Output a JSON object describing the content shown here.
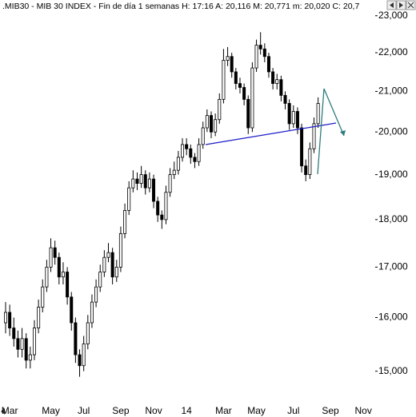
{
  "chart_data": {
    "type": "candlestick",
    "title": ".MIB30 - MIB 30 INDEX - Fin de día 1 semanas  H: 17:16  A: 20,116  M: 20,771  m: 20,020  C: 20,7",
    "log_scale": true,
    "up_color": "#ffffff",
    "down_color": "#000000",
    "ylim": [
      14430,
      23440
    ],
    "yticks": [
      {
        "value": 15000,
        "label": "15,000"
      },
      {
        "value": 16000,
        "label": "16,000"
      },
      {
        "value": 17000,
        "label": "17,000"
      },
      {
        "value": 18000,
        "label": "18,000"
      },
      {
        "value": 19000,
        "label": "19,000"
      },
      {
        "value": 20000,
        "label": "20,000"
      },
      {
        "value": 21000,
        "label": "21,000"
      },
      {
        "value": 22000,
        "label": "22,000"
      },
      {
        "value": 23000,
        "label": "23,000"
      }
    ],
    "categories": [
      null,
      "Mar",
      null,
      null,
      null,
      null,
      null,
      null,
      null,
      null,
      null,
      "May",
      null,
      null,
      null,
      null,
      null,
      null,
      null,
      "Jul",
      null,
      null,
      null,
      null,
      null,
      null,
      null,
      null,
      "Sep",
      null,
      null,
      null,
      null,
      null,
      null,
      null,
      "Nov",
      null,
      null,
      null,
      null,
      null,
      null,
      null,
      "14",
      null,
      null,
      null,
      null,
      null,
      null,
      null,
      null,
      "Mar",
      null,
      null,
      null,
      null,
      null,
      null,
      null,
      "May",
      null,
      null,
      null,
      null,
      null,
      null,
      null,
      null,
      "Jul",
      null,
      null,
      null,
      null,
      null,
      null,
      null,
      null,
      "Sep",
      null,
      null,
      null,
      null,
      null,
      null,
      null,
      "Nov",
      null,
      null,
      null
    ],
    "open": [
      15900,
      16100,
      15800,
      15600,
      15400,
      15600,
      15200,
      15300,
      15800,
      16200,
      16600,
      17000,
      17400,
      17200,
      16800,
      16900,
      16400,
      15900,
      15300,
      15100,
      15500,
      15900,
      16300,
      16600,
      16900,
      17200,
      17300,
      16800,
      17000,
      17700,
      18200,
      18700,
      18900,
      18800,
      19000,
      18700,
      18900,
      18400,
      18100,
      18000,
      18600,
      19000,
      19100,
      19400,
      19700,
      19600,
      19400,
      19300,
      19700,
      20100,
      20400,
      20000,
      20300,
      20800,
      21800,
      21900,
      21500,
      21200,
      21100,
      20800,
      20100,
      21600,
      22200,
      22100,
      21900,
      21500,
      21200,
      21300,
      20900,
      20700,
      20200,
      20500,
      20100,
      19200,
      19000,
      19600,
      20200,
      null,
      null,
      null,
      null,
      null,
      null,
      null,
      null,
      null,
      null,
      null,
      null,
      null,
      null
    ],
    "high": [
      16300,
      16250,
      16000,
      15750,
      15800,
      15700,
      15450,
      15950,
      16350,
      16750,
      17150,
      17600,
      17550,
      17300,
      17100,
      17000,
      16500,
      16000,
      15400,
      15650,
      16050,
      16450,
      16750,
      17050,
      17350,
      17500,
      17400,
      17150,
      17850,
      18350,
      18850,
      19100,
      19050,
      19200,
      19100,
      19050,
      19000,
      18500,
      18200,
      18750,
      19150,
      19300,
      19550,
      19850,
      19850,
      19700,
      19500,
      19850,
      20250,
      20550,
      20500,
      20450,
      20950,
      22100,
      22150,
      22000,
      21600,
      21350,
      21200,
      20900,
      21750,
      22350,
      22550,
      22250,
      22000,
      21600,
      21450,
      21400,
      21000,
      20800,
      20650,
      20600,
      20200,
      19350,
      19750,
      20350,
      20850,
      null,
      null,
      null,
      null,
      null,
      null,
      null,
      null,
      null,
      null,
      null,
      null,
      null,
      null
    ],
    "low": [
      15700,
      15650,
      15450,
      15250,
      15250,
      15050,
      15050,
      15200,
      15700,
      16100,
      16500,
      16900,
      17050,
      16650,
      16650,
      16250,
      15750,
      15150,
      14900,
      15000,
      15400,
      15800,
      16200,
      16500,
      16800,
      17100,
      16650,
      16700,
      16900,
      17600,
      18100,
      18600,
      18650,
      18700,
      18550,
      18600,
      18250,
      17950,
      17800,
      17900,
      18500,
      18900,
      19000,
      19300,
      19450,
      19250,
      19150,
      19200,
      19600,
      20000,
      19850,
      19900,
      20200,
      20700,
      21650,
      21350,
      21050,
      20950,
      20650,
      19950,
      20000,
      21500,
      21950,
      21750,
      21350,
      21050,
      21050,
      20750,
      20550,
      20050,
      20100,
      19950,
      19050,
      18850,
      18900,
      19500,
      20100,
      null,
      null,
      null,
      null,
      null,
      null,
      null,
      null,
      null,
      null,
      null,
      null,
      null,
      null
    ],
    "close": [
      16100,
      15800,
      15600,
      15400,
      15600,
      15200,
      15300,
      15800,
      16200,
      16600,
      17000,
      17400,
      17200,
      16800,
      16900,
      16400,
      15900,
      15300,
      15100,
      15500,
      15900,
      16300,
      16600,
      16900,
      17200,
      17300,
      16800,
      17000,
      17700,
      18200,
      18700,
      18900,
      18800,
      19000,
      18700,
      18900,
      18400,
      18100,
      18000,
      18600,
      19000,
      19100,
      19400,
      19700,
      19600,
      19400,
      19300,
      19700,
      20100,
      20400,
      20000,
      20300,
      20800,
      21800,
      21900,
      21500,
      21200,
      21100,
      20800,
      20100,
      21600,
      22200,
      22100,
      21900,
      21500,
      21200,
      21300,
      20900,
      20700,
      20200,
      20500,
      20100,
      19200,
      19000,
      19600,
      20200,
      20700,
      null,
      null,
      null,
      null,
      null,
      null,
      null,
      null,
      null,
      null,
      null,
      null,
      null,
      null
    ]
  }
}
